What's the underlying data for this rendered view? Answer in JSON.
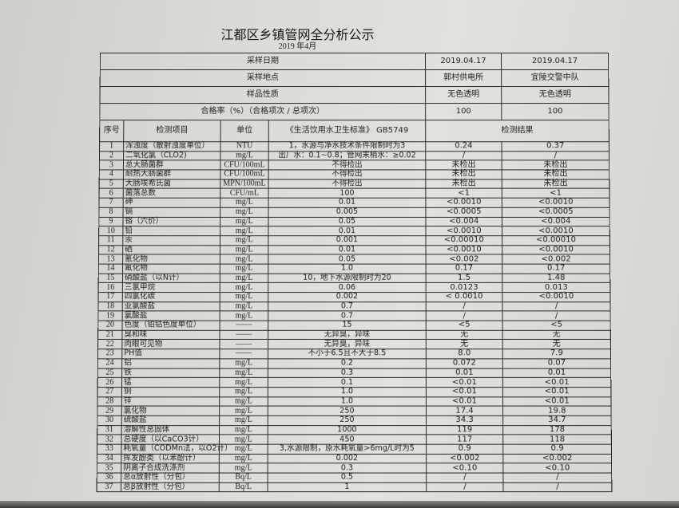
{
  "title": "江都区乡镇管网全分析公示",
  "subtitle": "2019  年4月",
  "meta": [
    {
      "label": "采样日期",
      "values": [
        "2019.04.17",
        "2019.04.17"
      ]
    },
    {
      "label": "采样地点",
      "values": [
        "郭村供电所",
        "宜陵交警中队"
      ]
    },
    {
      "label": "样品性质",
      "values": [
        "无色透明",
        "无色透明"
      ]
    },
    {
      "label": "合格率（%）（合格项次 / 总项次）",
      "values": [
        "100",
        "100"
      ]
    }
  ],
  "headers": {
    "seq": "序号",
    "item": "检测项目",
    "unit": "单位",
    "standard": "《生活饮用水卫生标准》 GB5749",
    "results": "检测结果"
  },
  "rows": [
    [
      "1",
      "浑浊度（散射浊度单位）",
      "NTU",
      "1，水源与净水技术条件限制时为3",
      "0.24",
      "0.37"
    ],
    [
      "2",
      "二氧化氯（CLO2)",
      "mg/L",
      "出厂水：0.1~0.8；管网末梢水：≥0.02",
      "/",
      "/"
    ],
    [
      "3",
      "总大肠菌群",
      "CFU/100mL",
      "不得检出",
      "未检出",
      "未检出"
    ],
    [
      "4",
      "耐热大肠菌群",
      "CFU/100mL",
      "不得检出",
      "未检出",
      "未检出"
    ],
    [
      "5",
      "大肠埃希氏菌",
      "MPN/100mL",
      "不得检出",
      "未检出",
      "未检出"
    ],
    [
      "6",
      "菌落总数",
      "CFU/mL",
      "100",
      "<1",
      "<1"
    ],
    [
      "7",
      "砷",
      "mg/L",
      "0.01",
      "<0.0010",
      "<0.0010"
    ],
    [
      "8",
      "镉",
      "mg/L",
      "0.005",
      "<0.0005",
      "<0.0005"
    ],
    [
      "9",
      "铬（六价）",
      "mg/L",
      "0.05",
      "<0.004",
      "<0.004"
    ],
    [
      "10",
      "铅",
      "mg/L",
      "0.01",
      "<0.0010",
      "<0.0010"
    ],
    [
      "11",
      "汞",
      "mg/L",
      "0.001",
      "<0.00010",
      "<0.00010"
    ],
    [
      "12",
      "硒",
      "mg/L",
      "0.01",
      "<0.0010",
      "<0.0010"
    ],
    [
      "13",
      "氰化物",
      "mg/L",
      "0.05",
      "<0.002",
      "<0.002"
    ],
    [
      "14",
      "氟化物",
      "mg/L",
      "1.0",
      "0.17",
      "0.17"
    ],
    [
      "15",
      "硝酸盐（以N计）",
      "mg/L",
      "10，地下水源限制时为20",
      "1.5",
      "1.48"
    ],
    [
      "16",
      "三氯甲烷",
      "mg/L",
      "0.06",
      "0.0123",
      "0.013"
    ],
    [
      "17",
      "四氯化碳",
      "mg/L",
      "0.002",
      "< 0.0010",
      "<0.0010"
    ],
    [
      "18",
      "亚氯酸盐",
      "mg/L",
      "0.7",
      "/",
      "/"
    ],
    [
      "19",
      "氯酸盐",
      "mg/L",
      "0.7",
      "/",
      "/"
    ],
    [
      "20",
      "色度（铂钴色度单位）",
      "——",
      "15",
      "<5",
      "<5"
    ],
    [
      "21",
      "臭和味",
      "——",
      "无异臭，异味",
      "无",
      "无"
    ],
    [
      "22",
      "肉眼可见物",
      "——",
      "无异臭，异味",
      "无",
      "无"
    ],
    [
      "23",
      "PH值",
      "——",
      "不小于6.5且不大于8.5",
      "8.0",
      "7.9"
    ],
    [
      "24",
      "铝",
      "mg/L",
      "0.2",
      "0.072",
      "0.07"
    ],
    [
      "25",
      "铁",
      "mg/L",
      "0.3",
      "0.01",
      "0.01"
    ],
    [
      "26",
      "锰",
      "mg/L",
      "0.1",
      "<0.01",
      "<0.01"
    ],
    [
      "27",
      "铜",
      "mg/L",
      "1.0",
      "<0.01",
      "<0.01"
    ],
    [
      "28",
      "锌",
      "mg/L",
      "1.0",
      "<0.01",
      "<0.01"
    ],
    [
      "29",
      "氯化物",
      "mg/L",
      "250",
      "17.4",
      "19.8"
    ],
    [
      "30",
      "硫酸盐",
      "mg/L",
      "250",
      "34.3",
      "34.7"
    ],
    [
      "31",
      "溶解性总固体",
      "mg/L",
      "1000",
      "119",
      "178"
    ],
    [
      "32",
      "总硬度（以CaCO3计）",
      "mg/L",
      "450",
      "117",
      "118"
    ],
    [
      "33",
      "耗氧量（CODMn法，以O2计）",
      "mg/L",
      "3,水源限制，原水耗氧量>6mg/L时为5",
      "0.9",
      "0.9"
    ],
    [
      "34",
      "挥发酚类（以苯酚计）",
      "mg/L",
      "0.002",
      "<0.002",
      "<0.002"
    ],
    [
      "35",
      "阴离子合成洗涤剂",
      "mg/L",
      "0.3",
      "<0.10",
      "<0.10"
    ],
    [
      "36",
      "总α放射性（分包）",
      "Bq/L",
      "0.5",
      "/",
      "/"
    ],
    [
      "37",
      "总β放射性（分包）",
      "Bq/L",
      "1",
      "/",
      "/"
    ]
  ]
}
